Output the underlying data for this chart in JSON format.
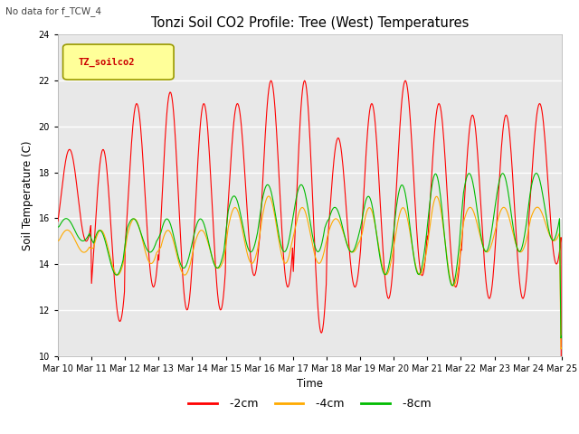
{
  "title": "Tonzi Soil CO2 Profile: Tree (West) Temperatures",
  "xlabel": "Time",
  "ylabel": "Soil Temperature (C)",
  "watermark": "No data for f_TCW_4",
  "legend_label": "TZ_soilco2",
  "ylim": [
    10,
    24
  ],
  "yticks": [
    10,
    12,
    14,
    16,
    18,
    20,
    22,
    24
  ],
  "fig_bg": "#ffffff",
  "plot_bg": "#e8e8e8",
  "line_colors": {
    "-2cm": "#ff0000",
    "-4cm": "#ffaa00",
    "-8cm": "#00bb00"
  },
  "x_labels": [
    "Mar 10",
    "Mar 11",
    "Mar 12",
    "Mar 13",
    "Mar 14",
    "Mar 15",
    "Mar 16",
    "Mar 17",
    "Mar 18",
    "Mar 19",
    "Mar 20",
    "Mar 21",
    "Mar 22",
    "Mar 23",
    "Mar 24",
    "Mar 25"
  ],
  "num_days": 15
}
